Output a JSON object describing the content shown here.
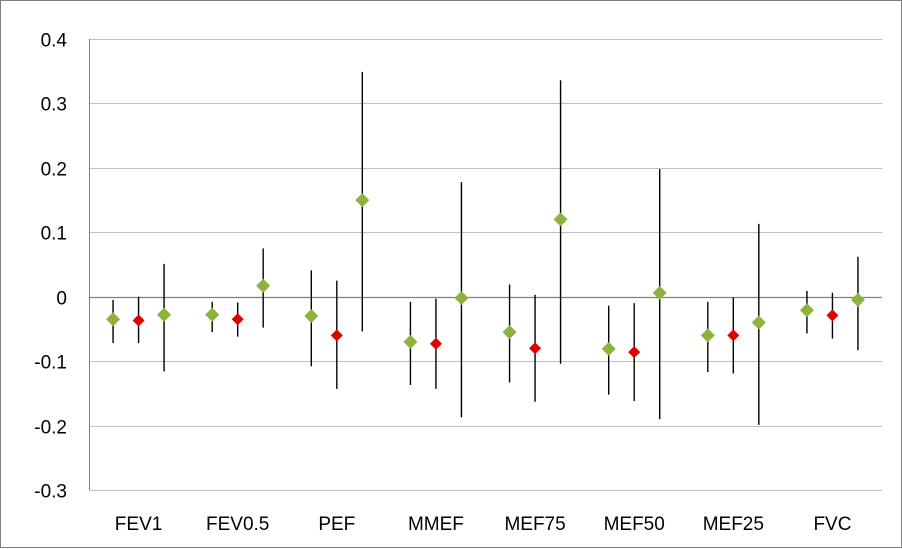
{
  "chart_data": {
    "type": "scatter",
    "title": "",
    "xlabel": "",
    "ylabel": "",
    "categories": [
      "FEV1",
      "FEV0.5",
      "PEF",
      "MMEF",
      "MEF75",
      "MEF50",
      "MEF25",
      "FVC"
    ],
    "ylim": [
      -0.3,
      0.4
    ],
    "yticks": [
      0.4,
      0.3,
      0.2,
      0.1,
      0,
      -0.1,
      -0.2,
      -0.3
    ],
    "yticklabels": [
      "0.4",
      "0.3",
      "0.2",
      "0.1",
      "0",
      "-0.1",
      "-0.2",
      "-0.3"
    ],
    "grid": true,
    "legend": "none",
    "series": [
      {
        "color": "#8db33f",
        "values": [
          -0.035,
          -0.028,
          -0.03,
          -0.07,
          -0.055,
          -0.081,
          -0.06,
          -0.021
        ],
        "lower": [
          -0.072,
          -0.055,
          -0.108,
          -0.137,
          -0.133,
          -0.152,
          -0.117,
          -0.057
        ],
        "upper": [
          -0.005,
          -0.008,
          0.041,
          -0.008,
          0.019,
          -0.014,
          -0.008,
          0.009
        ]
      },
      {
        "color": "#e00000",
        "values": [
          -0.037,
          -0.035,
          -0.06,
          -0.073,
          -0.08,
          -0.086,
          -0.06,
          -0.029
        ],
        "lower": [
          -0.072,
          -0.062,
          -0.143,
          -0.143,
          -0.163,
          -0.162,
          -0.119,
          -0.065
        ],
        "upper": [
          0,
          -0.009,
          0.025,
          -0.003,
          0.003,
          -0.01,
          -0.001,
          0.006
        ]
      },
      {
        "color": "#8db33f",
        "values": [
          -0.028,
          0.017,
          0.15,
          -0.002,
          0.12,
          0.006,
          -0.04,
          -0.005
        ],
        "lower": [
          -0.116,
          -0.048,
          -0.054,
          -0.187,
          -0.104,
          -0.19,
          -0.199,
          -0.083
        ],
        "upper": [
          0.051,
          0.075,
          0.349,
          0.178,
          0.336,
          0.198,
          0.113,
          0.062
        ]
      }
    ]
  }
}
